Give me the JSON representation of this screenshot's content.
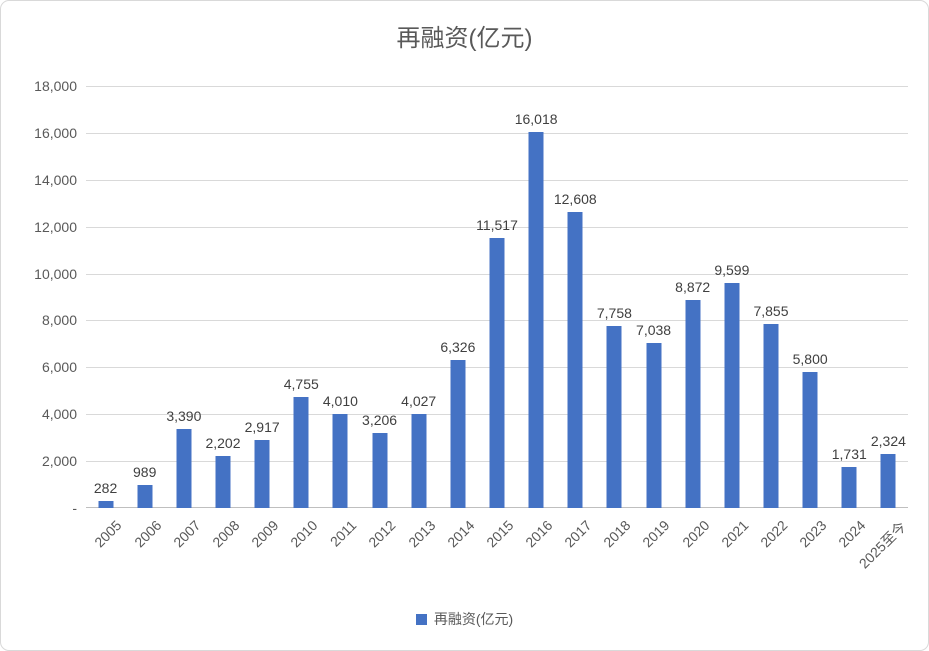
{
  "title": "再融资(亿元)",
  "legend": {
    "label": "再融资(亿元)",
    "color": "#4472C4"
  },
  "colors": {
    "bar": "#4472C4",
    "gridline": "#D9D9D9",
    "axis_line": "#BFBFBF",
    "title_text": "#595959",
    "tick_text": "#595959",
    "value_label_text": "#404040",
    "border": "#D9D9D9"
  },
  "chart_data": {
    "type": "bar",
    "title": "再融资(亿元)",
    "categories": [
      "2005",
      "2006",
      "2007",
      "2008",
      "2009",
      "2010",
      "2011",
      "2012",
      "2013",
      "2014",
      "2015",
      "2016",
      "2017",
      "2018",
      "2019",
      "2020",
      "2021",
      "2022",
      "2023",
      "2024",
      "2025至今"
    ],
    "values": [
      282,
      989,
      3390,
      2202,
      2917,
      4755,
      4010,
      3206,
      4027,
      6326,
      11517,
      16018,
      12608,
      7758,
      7038,
      8872,
      9599,
      7855,
      5800,
      1731,
      2324
    ],
    "labels": [
      "282",
      "989",
      "3,390",
      "2,202",
      "2,917",
      "4,755",
      "4,010",
      "3,206",
      "4,027",
      "6,326",
      "11,517",
      "16,018",
      "12,608",
      "7,758",
      "7,038",
      "8,872",
      "9,599",
      "7,855",
      "5,800",
      "1,731",
      "2,324"
    ],
    "series_name": "再融资(亿元)",
    "xlabel": "",
    "ylabel": "",
    "ylim": [
      0,
      18000
    ],
    "yticks": [
      {
        "value": 0,
        "label": "-"
      },
      {
        "value": 2000,
        "label": "2,000"
      },
      {
        "value": 4000,
        "label": "4,000"
      },
      {
        "value": 6000,
        "label": "6,000"
      },
      {
        "value": 8000,
        "label": "8,000"
      },
      {
        "value": 10000,
        "label": "10,000"
      },
      {
        "value": 12000,
        "label": "12,000"
      },
      {
        "value": 14000,
        "label": "14,000"
      },
      {
        "value": 16000,
        "label": "16,000"
      },
      {
        "value": 18000,
        "label": "18,000"
      }
    ],
    "grid": true,
    "legend_position": "bottom",
    "bar_color": "#4472C4"
  }
}
